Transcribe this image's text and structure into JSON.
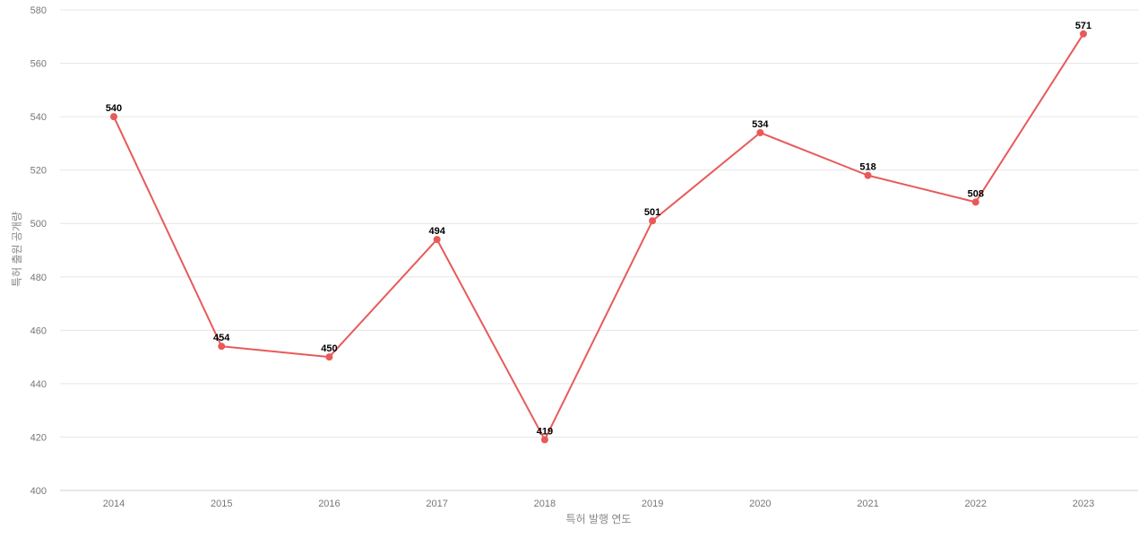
{
  "chart_data": {
    "type": "line",
    "title": "",
    "xlabel": "특허 발행 연도",
    "ylabel": "특허 출원 공개량",
    "categories": [
      "2014",
      "2015",
      "2016",
      "2017",
      "2018",
      "2019",
      "2020",
      "2021",
      "2022",
      "2023"
    ],
    "series": [
      {
        "values": [
          540,
          454,
          450,
          494,
          419,
          501,
          534,
          518,
          508,
          571
        ]
      }
    ],
    "ylim": [
      400,
      580
    ],
    "yticks": [
      400,
      420,
      440,
      460,
      480,
      500,
      520,
      540,
      560,
      580
    ],
    "grid": true,
    "legend": "none",
    "colors": {
      "line": "#e85a5a",
      "grid": "#e6e6e6"
    }
  }
}
